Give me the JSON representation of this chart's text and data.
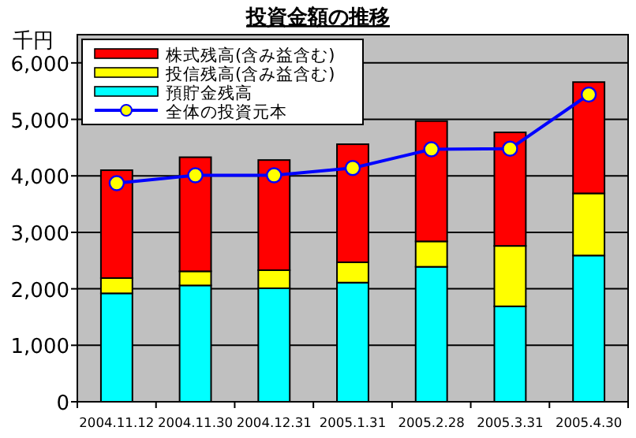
{
  "chart_data": {
    "type": "bar",
    "stacked": true,
    "title": "投資金額の推移",
    "ylabel": "千円",
    "categories": [
      "2004.11.12",
      "2004.11.30",
      "2004.12.31",
      "2005.1.31",
      "2005.2.28",
      "2005.3.31",
      "2005.4.30"
    ],
    "series": [
      {
        "name": "預貯金残高",
        "color": "#00ffff",
        "values": [
          1920,
          2060,
          2010,
          2110,
          2390,
          1690,
          2590
        ]
      },
      {
        "name": "投信残高(含み益含む)",
        "color": "#ffff00",
        "values": [
          270,
          250,
          320,
          360,
          450,
          1070,
          1100
        ]
      },
      {
        "name": "株式残高(含み益含む)",
        "color": "#ff0000",
        "values": [
          1910,
          2020,
          1950,
          2090,
          2130,
          2010,
          1970
        ]
      },
      {
        "name": "全体の投資元本",
        "type": "line",
        "color": "#0000ff",
        "marker": "circle",
        "values": [
          3870,
          4010,
          4010,
          4140,
          4470,
          4480,
          5440
        ]
      }
    ],
    "ylim": [
      0,
      6500
    ],
    "yticks": [
      {
        "value": 0,
        "label": "0"
      },
      {
        "value": 1000,
        "label": "1,000"
      },
      {
        "value": 2000,
        "label": "2,000"
      },
      {
        "value": 3000,
        "label": "3,000"
      },
      {
        "value": 4000,
        "label": "4,000"
      },
      {
        "value": 5000,
        "label": "5,000"
      },
      {
        "value": 6000,
        "label": "6,000"
      }
    ],
    "grid": "y",
    "legend": "top left"
  }
}
